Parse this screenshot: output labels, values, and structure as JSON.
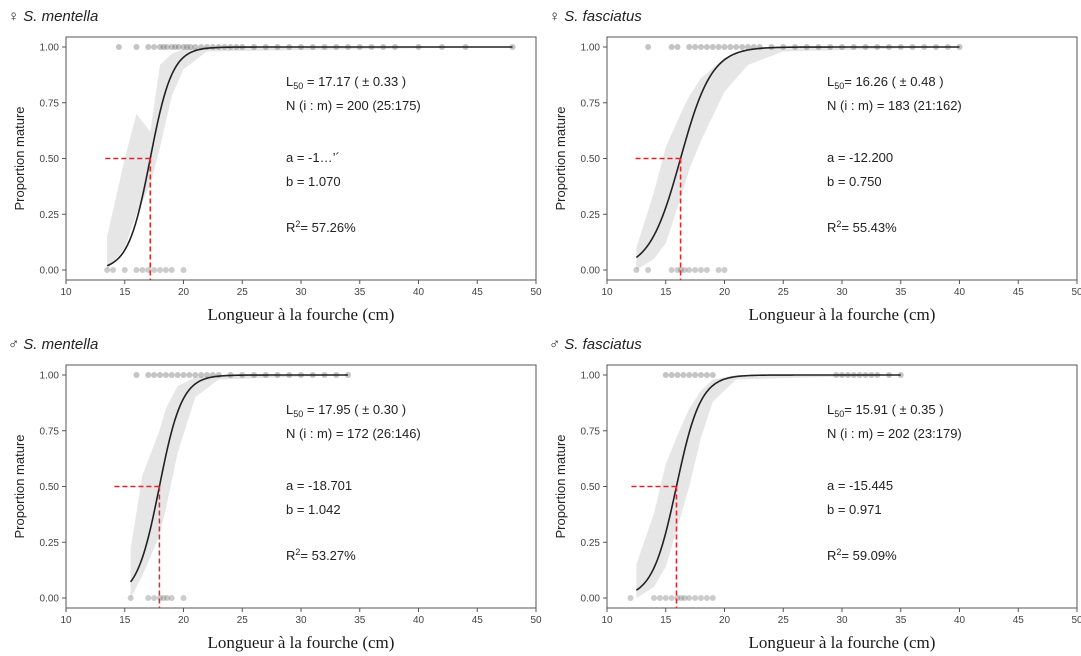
{
  "chart_data": [
    {
      "type": "scatter",
      "title_symbol": "♀",
      "title": "S. mentella",
      "xlabel": "Longueur à la fourche (cm)",
      "ylabel": "Proportion mature",
      "xlim": [
        10,
        50
      ],
      "ylim": [
        0,
        1
      ],
      "xticks": [
        "10",
        "15",
        "20",
        "25",
        "30",
        "35",
        "40",
        "45",
        "50"
      ],
      "yticks": [
        "0.00",
        "0.25",
        "0.50",
        "0.75",
        "1.00"
      ],
      "L50": 17.17,
      "a": -18.374,
      "b": 1.07,
      "band": [
        [
          13.5,
          0.15,
          0.0
        ],
        [
          15,
          0.5,
          0.1
        ],
        [
          16,
          0.7,
          0.25
        ],
        [
          17.17,
          0.62,
          0.38
        ],
        [
          18,
          0.92,
          0.55
        ],
        [
          19,
          0.97,
          0.78
        ],
        [
          20,
          0.99,
          0.9
        ],
        [
          22,
          1,
          0.98
        ],
        [
          48,
          1,
          1
        ]
      ],
      "mature_x": [
        14.5,
        16,
        17,
        17.5,
        18,
        18.3,
        18.6,
        19,
        19.3,
        19.6,
        20,
        20.3,
        20.6,
        21,
        21.5,
        22,
        22.5,
        23,
        23.5,
        24,
        24.5,
        25,
        26,
        27,
        28,
        29,
        30,
        31,
        32,
        33,
        34,
        35,
        36,
        37,
        38,
        40,
        42,
        44,
        48
      ],
      "immature_x": [
        13.5,
        14,
        15,
        16,
        16.5,
        17,
        17.5,
        18,
        18.5,
        19,
        20
      ],
      "annotations": {
        "l50_prefix": "L",
        "l50_sub": "50",
        "l50_text": " = 17.17 ( ± 0.33 )",
        "n_text": "N (i : m) = 200 (25:175)",
        "a_text": "a = -1…’´",
        "b_text": "b = 1.070",
        "r2_prefix": "R",
        "r2_sup": "2",
        "r2_text": "= 57.26%"
      }
    },
    {
      "type": "scatter",
      "title_symbol": "♀",
      "title": "S. fasciatus",
      "xlabel": "Longueur à la fourche (cm)",
      "ylabel": "Proportion mature",
      "xlim": [
        10,
        50
      ],
      "ylim": [
        0,
        1
      ],
      "xticks": [
        "10",
        "15",
        "20",
        "25",
        "30",
        "35",
        "40",
        "45",
        "50"
      ],
      "yticks": [
        "0.00",
        "0.25",
        "0.50",
        "0.75",
        "1.00"
      ],
      "L50": 16.26,
      "a": -12.2,
      "b": 0.75,
      "band": [
        [
          12.5,
          0.1,
          0.0
        ],
        [
          14,
          0.35,
          0.05
        ],
        [
          15,
          0.55,
          0.12
        ],
        [
          16.26,
          0.7,
          0.32
        ],
        [
          17,
          0.78,
          0.45
        ],
        [
          18,
          0.86,
          0.58
        ],
        [
          20,
          0.95,
          0.8
        ],
        [
          22,
          0.99,
          0.92
        ],
        [
          25,
          1,
          0.98
        ],
        [
          40,
          1,
          1
        ]
      ],
      "mature_x": [
        13.5,
        15.5,
        16,
        17,
        17.5,
        18,
        18.5,
        19,
        19.5,
        20,
        20.5,
        21,
        21.5,
        22,
        22.5,
        23,
        24,
        25,
        26,
        27,
        28,
        29,
        30,
        31,
        32,
        33,
        34,
        35,
        36,
        37,
        38,
        39,
        40
      ],
      "immature_x": [
        12.5,
        13.5,
        15.5,
        16,
        16.3,
        16.6,
        17,
        17.5,
        18,
        18.5,
        19.5,
        20
      ],
      "annotations": {
        "l50_prefix": "L",
        "l50_sub": "50",
        "l50_text": "= 16.26 ( ± 0.48 )",
        "n_text": "N (i : m) = 183 (21:162)",
        "a_text": "a = -12.200",
        "b_text": "b = 0.750",
        "r2_prefix": "R",
        "r2_sup": "2",
        "r2_text": "= 55.43%"
      }
    },
    {
      "type": "scatter",
      "title_symbol": "♂",
      "title": "S. mentella",
      "xlabel": "Longueur à la fourche (cm)",
      "ylabel": "Proportion mature",
      "xlim": [
        10,
        50
      ],
      "ylim": [
        0,
        1
      ],
      "xticks": [
        "10",
        "15",
        "20",
        "25",
        "30",
        "35",
        "40",
        "45",
        "50"
      ],
      "yticks": [
        "0.00",
        "0.25",
        "0.50",
        "0.75",
        "1.00"
      ],
      "L50": 17.95,
      "a": -18.701,
      "b": 1.042,
      "band": [
        [
          15.5,
          0.22,
          0.0
        ],
        [
          16.5,
          0.55,
          0.1
        ],
        [
          17.95,
          0.75,
          0.28
        ],
        [
          18.5,
          0.85,
          0.4
        ],
        [
          19.5,
          0.95,
          0.65
        ],
        [
          21,
          0.99,
          0.9
        ],
        [
          23,
          1,
          0.98
        ],
        [
          34,
          1,
          1
        ]
      ],
      "mature_x": [
        16,
        17,
        17.5,
        18,
        18.5,
        19,
        19.5,
        20,
        20.5,
        21,
        21.5,
        22,
        22.5,
        23,
        24,
        25,
        26,
        27,
        28,
        29,
        30,
        31,
        32,
        33,
        34
      ],
      "immature_x": [
        15.5,
        17,
        17.5,
        18,
        18.3,
        18.6,
        19,
        20
      ],
      "annotations": {
        "l50_prefix": "L",
        "l50_sub": "50",
        "l50_text": " = 17.95 ( ± 0.30 )",
        "n_text": "N (i : m) = 172 (26:146)",
        "a_text": "a = -18.701",
        "b_text": "b = 1.042",
        "r2_prefix": "R",
        "r2_sup": "2",
        "r2_text": "= 53.27%"
      }
    },
    {
      "type": "scatter",
      "title_symbol": "♂",
      "title": "S. fasciatus",
      "xlabel": "Longueur à la fourche (cm)",
      "ylabel": "Proportion mature",
      "xlim": [
        10,
        50
      ],
      "ylim": [
        0,
        1
      ],
      "xticks": [
        "10",
        "15",
        "20",
        "25",
        "30",
        "35",
        "40",
        "45",
        "50"
      ],
      "yticks": [
        "0.00",
        "0.25",
        "0.50",
        "0.75",
        "1.00"
      ],
      "L50": 15.91,
      "a": -15.445,
      "b": 0.971,
      "band": [
        [
          12.5,
          0.15,
          0.0
        ],
        [
          14,
          0.38,
          0.05
        ],
        [
          15,
          0.6,
          0.14
        ],
        [
          15.91,
          0.72,
          0.3
        ],
        [
          17,
          0.85,
          0.5
        ],
        [
          18,
          0.93,
          0.72
        ],
        [
          19,
          0.98,
          0.88
        ],
        [
          21,
          1,
          0.98
        ],
        [
          35,
          1,
          1
        ]
      ],
      "mature_x": [
        15,
        15.5,
        16,
        16.5,
        17,
        17.5,
        18,
        18.5,
        19,
        29.5,
        30,
        30.5,
        31,
        31.5,
        32,
        32.5,
        33,
        34,
        35
      ],
      "immature_x": [
        12,
        14,
        14.5,
        15,
        15.5,
        16,
        16.3,
        16.6,
        17,
        17.5,
        18,
        18.5,
        19
      ],
      "annotations": {
        "l50_prefix": "L",
        "l50_sub": "50",
        "l50_text": "= 15.91 ( ± 0.35 )",
        "n_text": "N (i : m) = 202 (23:179)",
        "a_text": "a = -15.445",
        "b_text": "b = 0.971",
        "r2_prefix": "R",
        "r2_sup": "2",
        "r2_text": "= 59.09%"
      }
    }
  ]
}
